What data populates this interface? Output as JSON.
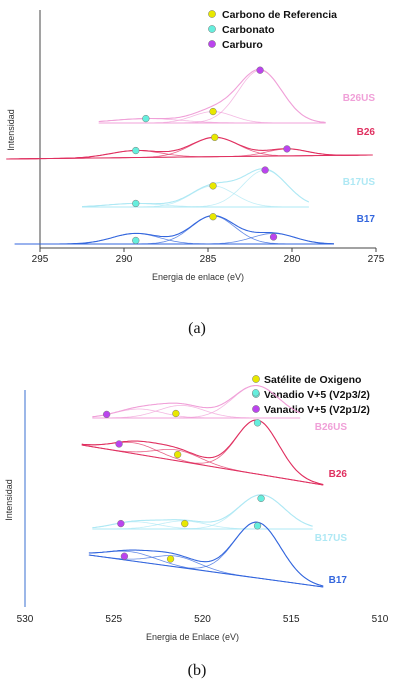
{
  "chart_data": [
    {
      "type": "line",
      "panel_label": "(a)",
      "xlabel": "Energia de enlace (eV)",
      "ylabel": "Intensidad",
      "xlim": [
        295,
        275
      ],
      "xticks": [
        "295",
        "290",
        "285",
        "280",
        "275"
      ],
      "grid": false,
      "legend_position": "top-left",
      "legend": [
        {
          "label": "Carbono de Referencia",
          "color": "#e8e800"
        },
        {
          "label": "Carbonato",
          "color": "#66eedd"
        },
        {
          "label": "Carburo",
          "color": "#bb44ee"
        }
      ],
      "series": [
        {
          "name": "B26US",
          "color": "#f0a0d8",
          "peaks": [
            {
              "center": 284.7,
              "height": 0.13,
              "width": 1.2
            },
            {
              "center": 281.9,
              "height": 0.6,
              "width": 1.3
            },
            {
              "center": 288.6,
              "height": 0.05,
              "width": 2.0
            }
          ],
          "markers": [
            {
              "type": "Carbonato",
              "x": 288.7,
              "y": 0.05
            },
            {
              "type": "Carbono de Referencia",
              "x": 284.7,
              "y": 0.13
            },
            {
              "type": "Carburo",
              "x": 281.9,
              "y": 0.6
            }
          ]
        },
        {
          "name": "B26",
          "color": "#e03060",
          "peaks": [
            {
              "center": 289.3,
              "height": 0.08,
              "width": 1.5
            },
            {
              "center": 284.6,
              "height": 0.22,
              "width": 1.4
            },
            {
              "center": 280.3,
              "height": 0.08,
              "width": 1.2
            }
          ],
          "markers": [
            {
              "type": "Carbonato",
              "x": 289.3,
              "y": 0.08
            },
            {
              "type": "Carbono de Referencia",
              "x": 284.6,
              "y": 0.22
            },
            {
              "type": "Carburo",
              "x": 280.3,
              "y": 0.08
            }
          ]
        },
        {
          "name": "B17US",
          "color": "#aee8f4",
          "peaks": [
            {
              "center": 289.3,
              "height": 0.04,
              "width": 1.6
            },
            {
              "center": 284.7,
              "height": 0.24,
              "width": 1.3
            },
            {
              "center": 281.6,
              "height": 0.42,
              "width": 1.3
            }
          ],
          "markers": [
            {
              "type": "Carbonato",
              "x": 289.3,
              "y": 0.04
            },
            {
              "type": "Carbono de Referencia",
              "x": 284.7,
              "y": 0.24
            },
            {
              "type": "Carburo",
              "x": 281.6,
              "y": 0.42
            }
          ]
        },
        {
          "name": "B17",
          "color": "#3366dd",
          "peaks": [
            {
              "center": 289.3,
              "height": 0.12,
              "width": 1.4
            },
            {
              "center": 284.7,
              "height": 0.32,
              "width": 1.3
            },
            {
              "center": 281.1,
              "height": 0.12,
              "width": 1.3
            }
          ],
          "markers": [
            {
              "type": "Carbonato",
              "x": 289.3,
              "y": 0.04
            },
            {
              "type": "Carbono de Referencia",
              "x": 284.7,
              "y": 0.31
            },
            {
              "type": "Carburo",
              "x": 281.1,
              "y": 0.08
            }
          ]
        }
      ]
    },
    {
      "type": "line",
      "panel_label": "(b)",
      "xlabel": "Energia de Enlace (eV)",
      "ylabel": "Intensidad",
      "xlim": [
        530,
        510
      ],
      "xticks": [
        "530",
        "525",
        "520",
        "515",
        "510"
      ],
      "grid": false,
      "legend_position": "top-right",
      "legend": [
        {
          "label": "Satélite de Oxigeno",
          "color": "#e8e800"
        },
        {
          "label": "Vanadio V+5 (V2p3/2)",
          "color": "#66eedd"
        },
        {
          "label": "Vanadio V+5 (V2p1/2)",
          "color": "#bb44ee"
        }
      ],
      "series": [
        {
          "name": "B26US",
          "color": "#f0a0d8",
          "peaks": [
            {
              "center": 523.6,
              "height": 0.1,
              "width": 1.3
            },
            {
              "center": 521.2,
              "height": 0.14,
              "width": 1.3
            },
            {
              "center": 517.0,
              "height": 0.36,
              "width": 1.3
            }
          ],
          "markers": [
            {
              "type": "Vanadio V+5 (V2p1/2)",
              "x": 525.4,
              "y": 0.04
            },
            {
              "type": "Satélite de Oxigeno",
              "x": 521.5,
              "y": 0.05
            },
            {
              "type": "Vanadio V+5 (V2p3/2)",
              "x": 517.0,
              "y": 0.28
            }
          ]
        },
        {
          "name": "B26",
          "color": "#e03060",
          "peaks": [
            {
              "center": 523.8,
              "height": 0.12,
              "width": 1.3
            },
            {
              "center": 521.4,
              "height": 0.12,
              "width": 1.3
            },
            {
              "center": 516.9,
              "height": 0.6,
              "width": 1.2
            }
          ],
          "markers": [
            {
              "type": "Vanadio V+5 (V2p1/2)",
              "x": 524.7,
              "y": 0.08
            },
            {
              "type": "Satélite de Oxigeno",
              "x": 521.4,
              "y": 0.07
            },
            {
              "type": "Vanadio V+5 (V2p3/2)",
              "x": 516.9,
              "y": 0.57
            }
          ]
        },
        {
          "name": "B17US",
          "color": "#aee8f4",
          "peaks": [
            {
              "center": 523.8,
              "height": 0.08,
              "width": 1.3
            },
            {
              "center": 521.1,
              "height": 0.09,
              "width": 1.3
            },
            {
              "center": 516.7,
              "height": 0.38,
              "width": 1.3
            }
          ],
          "markers": [
            {
              "type": "Vanadio V+5 (V2p1/2)",
              "x": 524.6,
              "y": 0.06
            },
            {
              "type": "Satélite de Oxigeno",
              "x": 521.0,
              "y": 0.06
            },
            {
              "type": "Vanadio V+5 (V2p3/2)",
              "x": 516.7,
              "y": 0.34
            }
          ]
        },
        {
          "name": "B17",
          "color": "#3366dd",
          "peaks": [
            {
              "center": 524.0,
              "height": 0.1,
              "width": 1.4
            },
            {
              "center": 521.5,
              "height": 0.12,
              "width": 1.3
            },
            {
              "center": 516.9,
              "height": 0.62,
              "width": 1.3
            }
          ],
          "markers": [
            {
              "type": "Vanadio V+5 (V2p1/2)",
              "x": 524.4,
              "y": 0.04
            },
            {
              "type": "Satélite de Oxigeno",
              "x": 521.8,
              "y": 0.08
            },
            {
              "type": "Vanadio V+5 (V2p3/2)",
              "x": 516.9,
              "y": 0.58
            }
          ]
        }
      ]
    }
  ]
}
